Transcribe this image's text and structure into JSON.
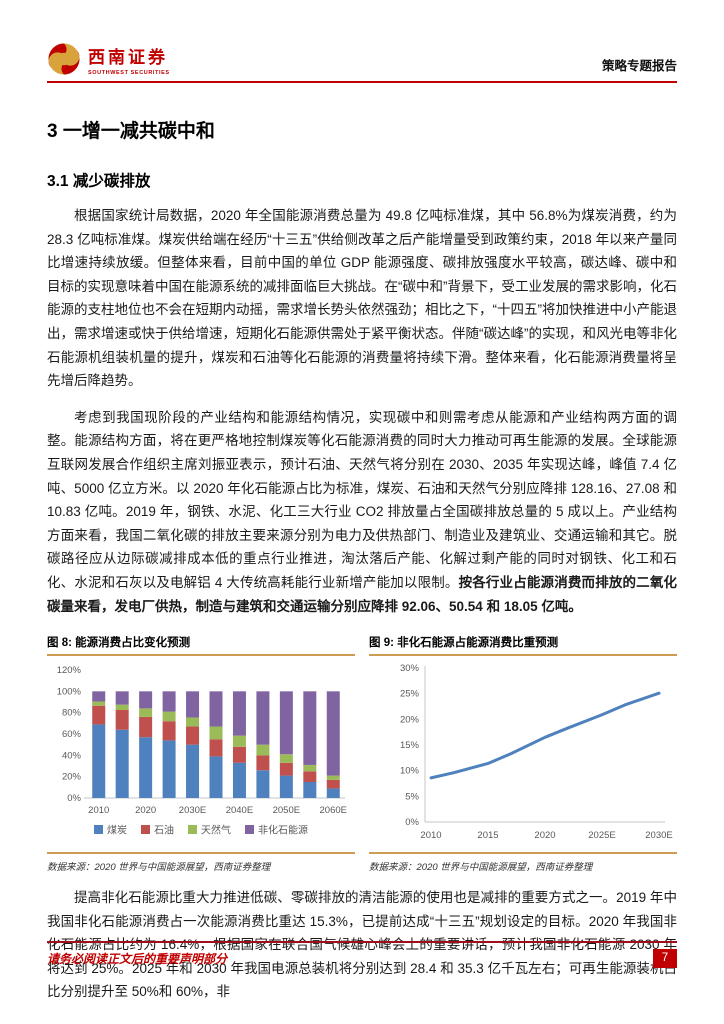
{
  "header": {
    "logo_cn": "西南证券",
    "logo_en": "SOUTHWEST SECURITIES",
    "report_type": "策略专题报告"
  },
  "section": {
    "h1": "3 一增一减共碳中和",
    "h2": "3.1 减少碳排放"
  },
  "paragraphs": {
    "p1": "根据国家统计局数据，2020 年全国能源消费总量为 49.8 亿吨标准煤，其中 56.8%为煤炭消费，约为 28.3 亿吨标准煤。煤炭供给端在经历“十三五”供给侧改革之后产能增量受到政策约束，2018 年以来产量同比增速持续放缓。但整体来看，目前中国的单位 GDP 能源强度、碳排放强度水平较高，碳达峰、碳中和目标的实现意味着中国在能源系统的减排面临巨大挑战。在“碳中和”背景下，受工业发展的需求影响，化石能源的支柱地位也不会在短期内动摇，需求增长势头依然强劲；相比之下，“十四五”将加快推进中小产能退出，需求增速或快于供给增速，短期化石能源供需处于紧平衡状态。伴随“碳达峰”的实现，和风光电等非化石能源机组装机量的提升，煤炭和石油等化石能源的消费量将持续下滑。整体来看，化石能源消费量将呈先增后降趋势。",
    "p2_normal": "考虑到我国现阶段的产业结构和能源结构情况，实现碳中和则需考虑从能源和产业结构两方面的调整。能源结构方面，将在更严格地控制煤炭等化石能源消费的同时大力推动可再生能源的发展。全球能源互联网发展合作组织主席刘振亚表示，预计石油、天然气将分别在 2030、2035 年实现达峰，峰值 7.4 亿吨、5000 亿立方米。以 2020 年化石能源占比为标准，煤炭、石油和天然气分别应降排 128.16、27.08 和 10.83 亿吨。2019 年，钢铁、水泥、化工三大行业 CO2 排放量占全国碳排放总量的 5 成以上。产业结构方面来看，我国二氧化碳的排放主要来源分别为电力及供热部门、制造业及建筑业、交通运输和其它。脱碳路径应从边际碳减排成本低的重点行业推进，淘汰落后产能、化解过剩产能的同时对钢铁、化工和石化、水泥和石灰以及电解铝 4 大传统高耗能行业新增产能加以限制。",
    "p2_bold": "按各行业占能源消费而排放的二氧化碳量来看，发电厂供热，制造与建筑和交通运输分别应降排 92.06、50.54 和 18.05 亿吨。",
    "p3": "提高非化石能源比重大力推进低碳、零碳排放的清洁能源的使用也是减排的重要方式之一。2019 年中我国非化石能源消费占一次能源消费比重达 15.3%，已提前达成“十三五”规划设定的目标。2020 年我国非化石能源占比约为 16.4%，根据国家在联合国气候雄心峰会上的重要讲话，预计我国非化石能源 2030 年将达到 25%。2025 年和 2030 年我国电源总装机将分别达到 28.4 和 35.3 亿千瓦左右；可再生能源装机占比分别提升至 50%和 60%，非"
  },
  "figures": {
    "fig8": {
      "title": "图 8: 能源消费占比变化预测",
      "source": "数据来源：2020 世界与中国能源展望，西南证券整理"
    },
    "fig9": {
      "title": "图 9: 非化石能源占能源消费比重预测",
      "source": "数据来源：2020 世界与中国能源展望，西南证券整理"
    }
  },
  "chart_data": [
    {
      "id": "fig8",
      "type": "bar",
      "stacked": true,
      "title": "能源消费占比变化预测",
      "categories": [
        "2010",
        "2015",
        "2020",
        "2025",
        "2030E",
        "2035E",
        "2040E",
        "2045E",
        "2050E",
        "2055E",
        "2060E"
      ],
      "x_tick_indices": [
        0,
        2,
        4,
        6,
        8,
        10
      ],
      "series": [
        {
          "name": "煤炭",
          "color": "#4E81BD",
          "values": [
            69,
            64,
            57,
            54,
            50,
            39,
            33,
            26,
            21,
            15,
            9
          ]
        },
        {
          "name": "石油",
          "color": "#C0504D",
          "values": [
            17.5,
            18.5,
            19,
            18,
            17,
            16,
            15,
            14,
            12,
            10,
            8
          ]
        },
        {
          "name": "天然气",
          "color": "#9BBB59",
          "values": [
            4,
            5,
            8,
            9,
            8.5,
            12,
            10.5,
            10,
            8,
            6,
            4
          ]
        },
        {
          "name": "非化石能源",
          "color": "#8064A2",
          "values": [
            9.5,
            12.5,
            16,
            19,
            24.5,
            33,
            41.5,
            50,
            59,
            69,
            79
          ]
        }
      ],
      "ylabel": "",
      "xlabel": "",
      "ylim": [
        0,
        120
      ],
      "ytick_step": 20,
      "grid": false,
      "legend_position": "bottom"
    },
    {
      "id": "fig9",
      "type": "line",
      "title": "非化石能源占能源消费比重预测",
      "x": [
        2010,
        2012,
        2015,
        2017,
        2020,
        2022,
        2025,
        2027,
        2030
      ],
      "values": [
        8.6,
        9.6,
        11.4,
        13.3,
        16.5,
        18.3,
        20.9,
        22.8,
        25.1
      ],
      "x_ticks": [
        2010,
        2015,
        2020,
        2025,
        2030
      ],
      "x_tick_labels": [
        "2010",
        "2015",
        "2020",
        "2025E",
        "2030E"
      ],
      "ylabel": "",
      "xlabel": "",
      "ylim": [
        0,
        30
      ],
      "ytick_step": 5,
      "grid": false,
      "legend_position": "none",
      "color": "#4E81BD"
    }
  ],
  "footer": {
    "disclaimer": "请务必阅读正文后的重要声明部分",
    "page_number": "7"
  },
  "colors": {
    "brand_red": "#C00000",
    "figure_rule_orange": "#CD9B51",
    "axis_text_gray": "#595959",
    "axis_line_gray": "#C6C6C6"
  }
}
